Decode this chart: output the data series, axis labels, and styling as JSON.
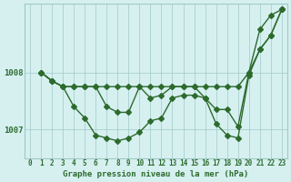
{
  "title": "Graphe pression niveau de la mer (hPa)",
  "xlabel_ticks": [
    "0",
    "1",
    "2",
    "3",
    "4",
    "5",
    "6",
    "7",
    "8",
    "9",
    "10",
    "11",
    "12",
    "13",
    "14",
    "15",
    "16",
    "17",
    "18",
    "19",
    "20",
    "21",
    "22",
    "23"
  ],
  "yticks": [
    1007,
    1008
  ],
  "ylim": [
    1006.5,
    1009.2
  ],
  "xlim": [
    -0.5,
    23.5
  ],
  "background_color": "#d6f0f0",
  "grid_color": "#a0c8c8",
  "line_color": "#2d6b2d",
  "marker_color": "#2d6b2d",
  "series1": [
    1008.0,
    1007.85,
    1007.75,
    1007.75,
    1007.75,
    1007.75,
    1007.4,
    1007.3,
    1007.3,
    1007.75,
    1007.55,
    1007.6,
    1007.75,
    1007.75,
    1007.75,
    1007.55,
    1007.35,
    1007.35,
    1007.05,
    1008.0,
    1008.4,
    1008.65,
    1009.1
  ],
  "series2": [
    1008.0,
    1007.85,
    1007.75,
    1007.75,
    1007.75,
    1007.75,
    1007.75,
    1007.75,
    1007.75,
    1007.75,
    1007.75,
    1007.75,
    1007.75,
    1007.75,
    1007.75,
    1007.75,
    1007.75,
    1007.75,
    1007.75,
    1008.0,
    1008.75,
    1009.0,
    1009.1
  ],
  "series3": [
    1008.0,
    1007.85,
    1007.75,
    1007.4,
    1007.2,
    1006.9,
    1006.85,
    1006.8,
    1006.85,
    1006.95,
    1007.15,
    1007.2,
    1007.55,
    1007.6,
    1007.6,
    1007.55,
    1007.1,
    1006.9,
    1006.85,
    1007.95,
    1008.4,
    1008.65,
    1009.1
  ]
}
